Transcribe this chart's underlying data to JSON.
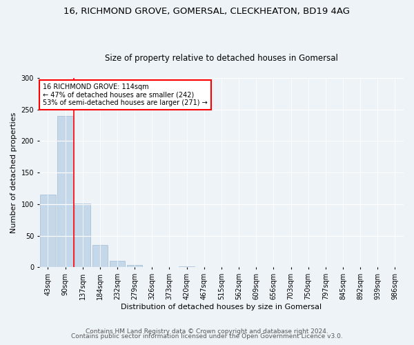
{
  "title1": "16, RICHMOND GROVE, GOMERSAL, CLECKHEATON, BD19 4AG",
  "title2": "Size of property relative to detached houses in Gomersal",
  "xlabel": "Distribution of detached houses by size in Gomersal",
  "ylabel": "Number of detached properties",
  "categories": [
    "43sqm",
    "90sqm",
    "137sqm",
    "184sqm",
    "232sqm",
    "279sqm",
    "326sqm",
    "373sqm",
    "420sqm",
    "467sqm",
    "515sqm",
    "562sqm",
    "609sqm",
    "656sqm",
    "703sqm",
    "750sqm",
    "797sqm",
    "845sqm",
    "892sqm",
    "939sqm",
    "986sqm"
  ],
  "values": [
    115,
    240,
    101,
    35,
    10,
    4,
    1,
    0,
    2,
    0,
    0,
    0,
    1,
    0,
    0,
    1,
    0,
    0,
    0,
    1,
    0
  ],
  "bar_color": "#c5d8ea",
  "bar_edge_color": "#a0bcd4",
  "annotation_text": "16 RICHMOND GROVE: 114sqm\n← 47% of detached houses are smaller (242)\n53% of semi-detached houses are larger (271) →",
  "annotation_box_color": "white",
  "annotation_box_edge": "red",
  "vline_color": "red",
  "vline_bin_index": 1,
  "ylim": [
    0,
    300
  ],
  "yticks": [
    0,
    50,
    100,
    150,
    200,
    250,
    300
  ],
  "bg_color": "#eef3f8",
  "plot_bg_color": "#eef3f8",
  "footer1": "Contains HM Land Registry data © Crown copyright and database right 2024.",
  "footer2": "Contains public sector information licensed under the Open Government Licence v3.0.",
  "title1_fontsize": 9.5,
  "title2_fontsize": 8.5,
  "xlabel_fontsize": 8,
  "ylabel_fontsize": 8,
  "tick_fontsize": 7,
  "footer_fontsize": 6.5,
  "annot_fontsize": 7
}
